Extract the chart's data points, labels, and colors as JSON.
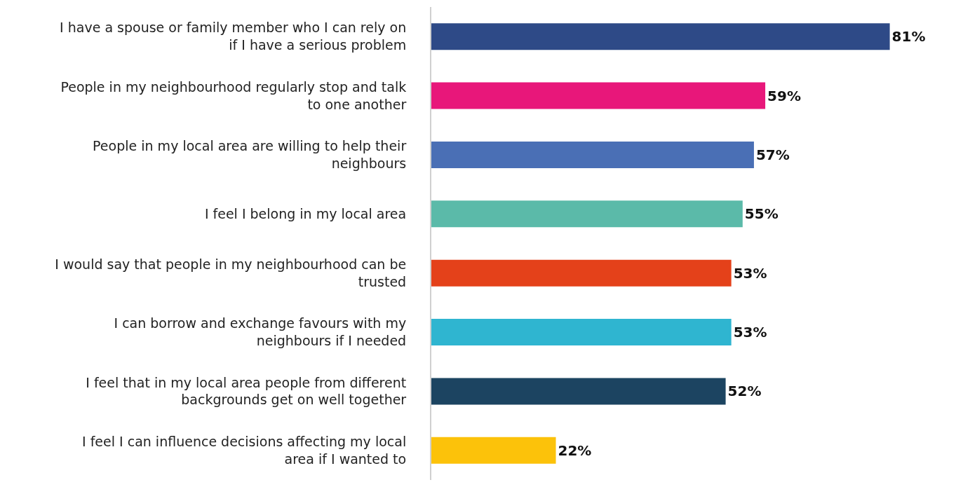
{
  "chart_data": {
    "type": "bar",
    "orientation": "horizontal",
    "categories": [
      "I have a spouse or family member who I can rely on if I have a serious problem",
      "People in my neighbourhood regularly stop and talk to one another",
      "People in my local area are willing to help their neighbours",
      "I feel I belong in my local area",
      "I would say that people in my neighbourhood can be trusted",
      "I can borrow and exchange favours with my neighbours if I needed",
      "I feel that in my local area people from different backgrounds get on well together",
      "I feel I can influence decisions affecting my local area if I wanted to"
    ],
    "values": [
      81,
      59,
      57,
      55,
      53,
      53,
      52,
      22
    ],
    "colors": [
      "#2e4a87",
      "#e8177a",
      "#4a6fb5",
      "#5bbaa9",
      "#e4411a",
      "#2fb5d0",
      "#1c4461",
      "#fcc20a"
    ],
    "value_labels": [
      "81%",
      "59%",
      "57%",
      "55%",
      "53%",
      "53%",
      "52%",
      "22%"
    ],
    "tick_labels": "y",
    "grid": false
  }
}
